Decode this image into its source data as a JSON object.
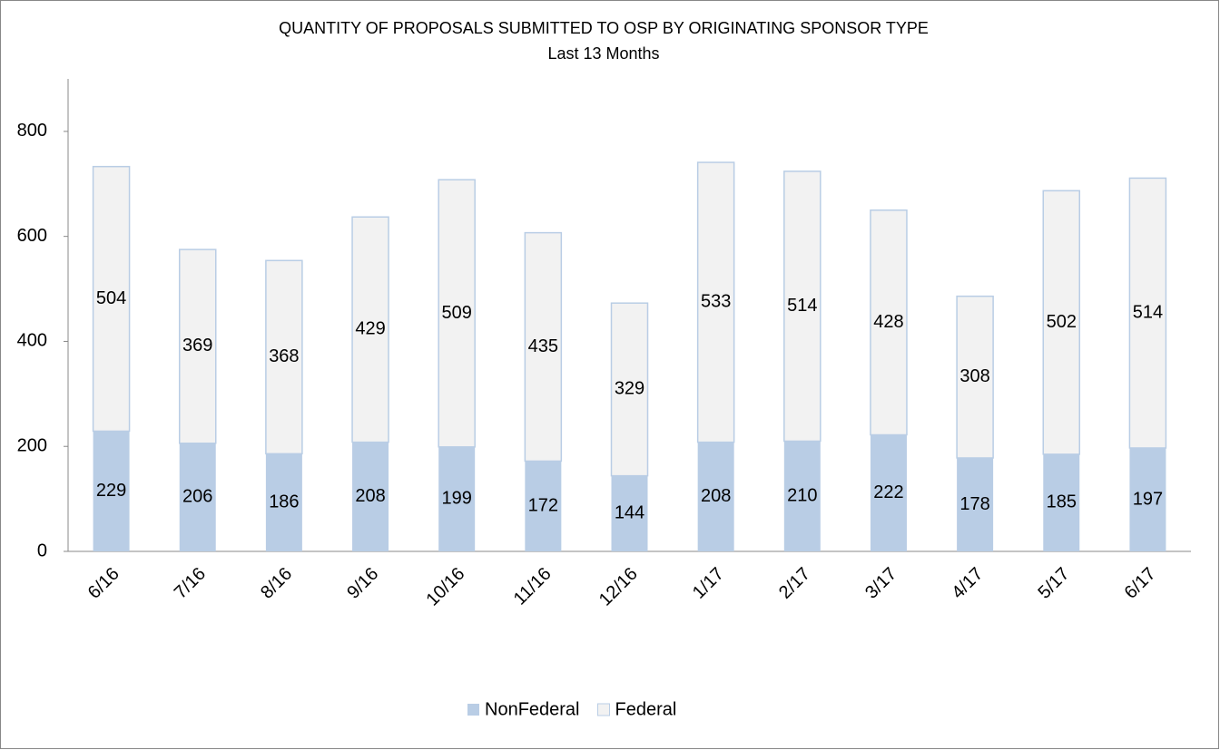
{
  "chart_data": {
    "type": "stacked_bar",
    "title": "QUANTITY OF PROPOSALS SUBMITTED TO OSP BY ORIGINATING SPONSOR TYPE",
    "subtitle": "Last 13 Months",
    "categories": [
      "6/16",
      "7/16",
      "8/16",
      "9/16",
      "10/16",
      "11/16",
      "12/16",
      "1/17",
      "2/17",
      "3/17",
      "4/17",
      "5/17",
      "6/17"
    ],
    "series": [
      {
        "name": "NonFederal",
        "color": "#b9cde5",
        "values": [
          229,
          206,
          186,
          208,
          199,
          172,
          144,
          208,
          210,
          222,
          178,
          185,
          197
        ]
      },
      {
        "name": "Federal",
        "color": "#f2f2f2",
        "values": [
          504,
          369,
          368,
          429,
          509,
          435,
          329,
          533,
          514,
          428,
          308,
          502,
          514
        ]
      }
    ],
    "ylim": [
      0,
      900
    ],
    "yticks": [
      0,
      200,
      400,
      600,
      800
    ],
    "grid": false,
    "legend": "bottom"
  }
}
